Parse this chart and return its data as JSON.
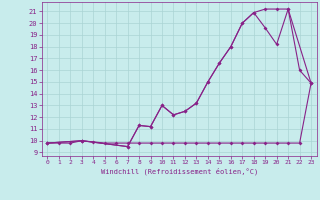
{
  "xlabel": "Windchill (Refroidissement éolien,°C)",
  "bg_color": "#c8ecec",
  "grid_color": "#aad4d4",
  "line_color": "#882288",
  "xlim": [
    -0.5,
    23.5
  ],
  "ylim": [
    8.7,
    21.8
  ],
  "xticks": [
    0,
    1,
    2,
    3,
    4,
    5,
    6,
    7,
    8,
    9,
    10,
    11,
    12,
    13,
    14,
    15,
    16,
    17,
    18,
    19,
    20,
    21,
    22,
    23
  ],
  "yticks": [
    9,
    10,
    11,
    12,
    13,
    14,
    15,
    16,
    17,
    18,
    19,
    20,
    21
  ],
  "line1_x": [
    0,
    1,
    2,
    3,
    4,
    5,
    6,
    7,
    8,
    9,
    10,
    11,
    12,
    13,
    14,
    15,
    16,
    17,
    18,
    19,
    20,
    21,
    22,
    23
  ],
  "line1_y": [
    9.8,
    9.8,
    9.8,
    10.0,
    9.9,
    9.8,
    9.8,
    9.8,
    9.8,
    9.8,
    9.8,
    9.8,
    9.8,
    9.8,
    9.8,
    9.8,
    9.8,
    9.8,
    9.8,
    9.8,
    9.8,
    9.8,
    9.8,
    14.9
  ],
  "line2_x": [
    0,
    3,
    7,
    8,
    9,
    10,
    11,
    12,
    13,
    14,
    15,
    16,
    17,
    18,
    19,
    20,
    21,
    22,
    23
  ],
  "line2_y": [
    9.8,
    10.0,
    9.5,
    11.3,
    11.2,
    13.0,
    12.2,
    12.5,
    13.2,
    15.0,
    16.6,
    18.0,
    20.0,
    20.9,
    19.6,
    18.2,
    21.2,
    16.0,
    14.9
  ],
  "line3_x": [
    0,
    3,
    7,
    8,
    9,
    10,
    11,
    12,
    13,
    14,
    15,
    16,
    17,
    18,
    19,
    20,
    21,
    23
  ],
  "line3_y": [
    9.8,
    10.0,
    9.5,
    11.3,
    11.2,
    13.0,
    12.2,
    12.5,
    13.2,
    15.0,
    16.6,
    18.0,
    20.0,
    20.9,
    21.2,
    21.2,
    21.2,
    14.9
  ]
}
